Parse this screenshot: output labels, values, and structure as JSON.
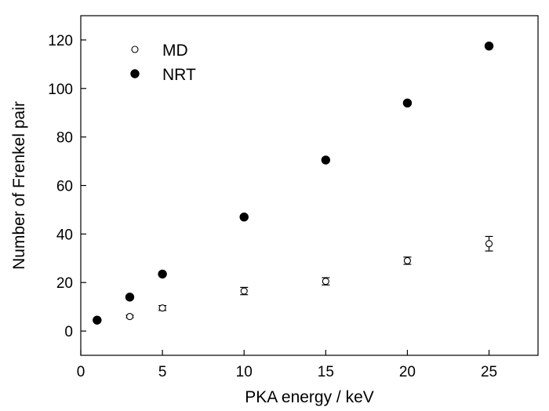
{
  "chart_data": {
    "type": "scatter",
    "xlabel": "PKA energy / keV",
    "ylabel": "Number of Frenkel pair",
    "xlim": [
      0,
      28
    ],
    "ylim": [
      -10,
      130
    ],
    "xticks": [
      0,
      5,
      10,
      15,
      20,
      25
    ],
    "yticks": [
      0,
      20,
      40,
      60,
      80,
      100,
      120
    ],
    "grid": false,
    "legend_position": "top-left",
    "series": [
      {
        "name": "MD",
        "marker": "open-circle",
        "color": "#000000",
        "points": [
          {
            "x": 1,
            "y": 4.5,
            "err": 0.5
          },
          {
            "x": 3,
            "y": 6,
            "err": 0.5
          },
          {
            "x": 5,
            "y": 9.5,
            "err": 1
          },
          {
            "x": 10,
            "y": 16.5,
            "err": 1.5
          },
          {
            "x": 15,
            "y": 20.5,
            "err": 1.5
          },
          {
            "x": 20,
            "y": 29,
            "err": 1.5
          },
          {
            "x": 25,
            "y": 36,
            "err": 3
          }
        ]
      },
      {
        "name": "NRT",
        "marker": "filled-circle",
        "color": "#000000",
        "points": [
          {
            "x": 1,
            "y": 4.5
          },
          {
            "x": 3,
            "y": 14
          },
          {
            "x": 5,
            "y": 23.5
          },
          {
            "x": 10,
            "y": 47
          },
          {
            "x": 15,
            "y": 70.5
          },
          {
            "x": 20,
            "y": 94
          },
          {
            "x": 25,
            "y": 117.5
          }
        ]
      }
    ]
  }
}
